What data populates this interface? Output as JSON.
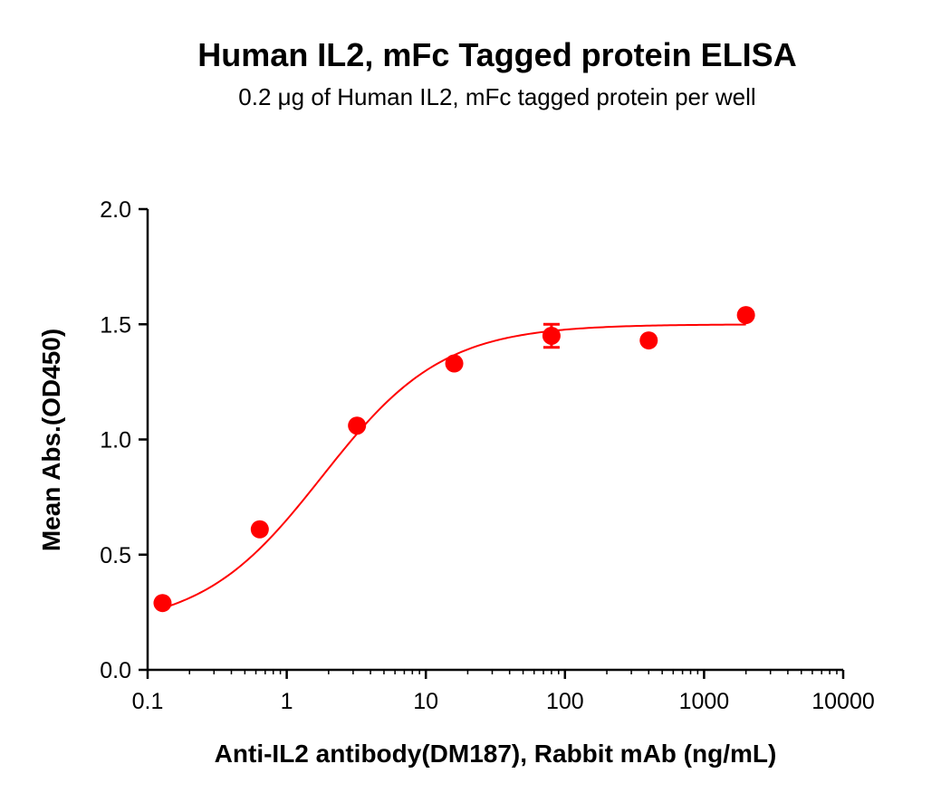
{
  "chart_data": {
    "type": "scatter",
    "title": "Human IL2, mFc Tagged protein ELISA",
    "subtitle": "0.2 μg of Human IL2, mFc tagged protein per well",
    "xlabel": "Anti-IL2 antibody(DM187), Rabbit mAb (ng/mL)",
    "ylabel": "Mean Abs.(OD450)",
    "x_scale": "log",
    "xlim": [
      0.1,
      10000
    ],
    "ylim": [
      0,
      2.0
    ],
    "x_ticks": [
      "0.1",
      "1",
      "10",
      "100",
      "1000",
      "10000"
    ],
    "x_tick_values": [
      0.1,
      1,
      10,
      100,
      1000,
      10000
    ],
    "y_ticks": [
      "0.0",
      "0.5",
      "1.0",
      "1.5",
      "2.0"
    ],
    "y_tick_values": [
      0,
      0.5,
      1.0,
      1.5,
      2.0
    ],
    "grid": false,
    "legend": "none",
    "color": "#ff0000",
    "series": [
      {
        "x": [
          0.128,
          0.64,
          3.2,
          16,
          80,
          400,
          2000
        ],
        "y": [
          0.29,
          0.61,
          1.06,
          1.33,
          1.45,
          1.43,
          1.54
        ],
        "error": [
          0,
          0,
          0,
          0,
          0.05,
          0,
          0
        ]
      }
    ],
    "fit": {
      "type": "4PL",
      "bottom": 0.18,
      "top": 1.5,
      "ec50": 1.8,
      "hill": 1.0,
      "x_range": [
        0.128,
        2000
      ]
    }
  }
}
